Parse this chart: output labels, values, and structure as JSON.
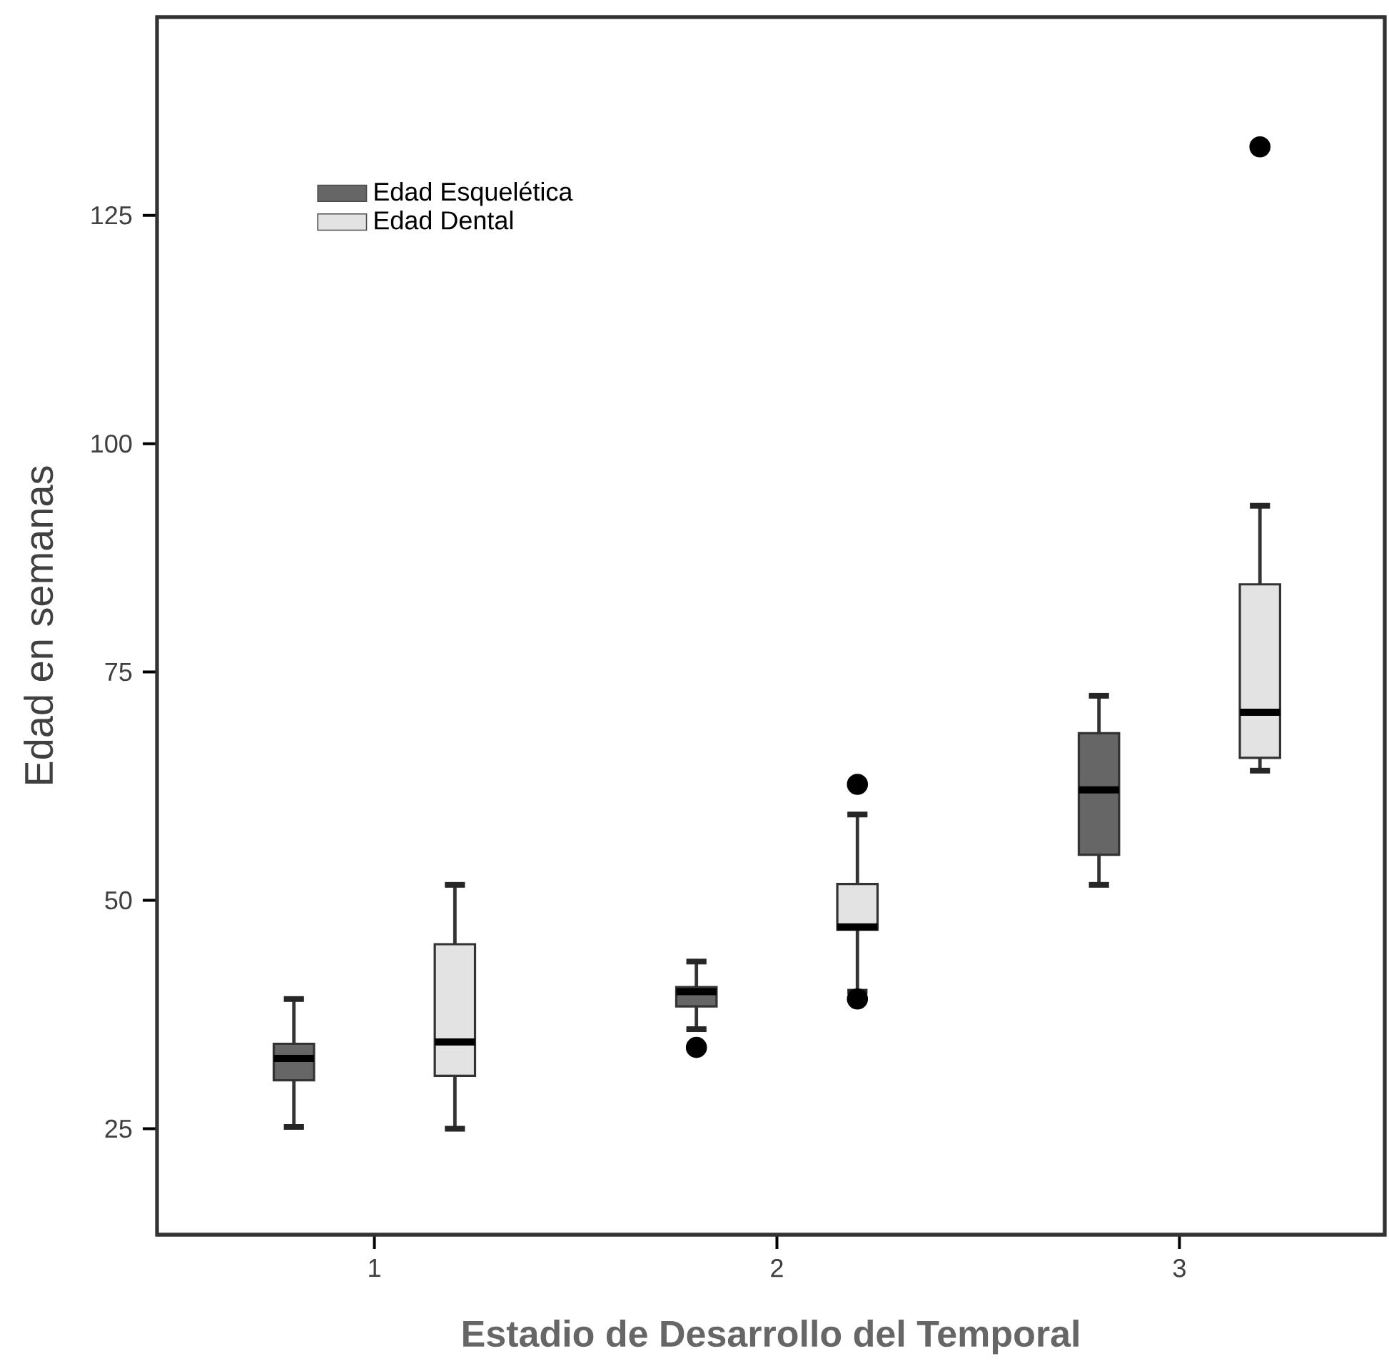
{
  "chart_data": {
    "type": "box",
    "xlabel": "Estadio de Desarrollo del Temporal",
    "ylabel": "Edad en semanas",
    "categories": [
      "1",
      "2",
      "3"
    ],
    "ylim": [
      13.4,
      146.7
    ],
    "yticks": [
      25,
      50,
      75,
      100,
      125
    ],
    "legend": "top left",
    "grid": false,
    "series": [
      {
        "name": "Edad Esquelética",
        "color": "#666666",
        "boxes": [
          {
            "low": 25.2,
            "q1": 30.3,
            "median": 32.7,
            "q3": 34.3,
            "high": 39.2
          },
          {
            "low": 35.9,
            "q1": 38.4,
            "median": 40.0,
            "q3": 40.5,
            "high": 43.3,
            "outliers": [
              33.9
            ]
          },
          {
            "low": 51.7,
            "q1": 55.0,
            "median": 62.1,
            "q3": 68.3,
            "high": 72.4
          }
        ]
      },
      {
        "name": "Edad Dental",
        "color": "#e3e3e3",
        "boxes": [
          {
            "low": 25.0,
            "q1": 30.8,
            "median": 34.5,
            "q3": 45.2,
            "high": 51.7
          },
          {
            "low": 40.0,
            "q1": 46.8,
            "median": 47.1,
            "q3": 51.8,
            "high": 59.4,
            "outliers": [
              62.7,
              39.2
            ]
          },
          {
            "low": 64.2,
            "q1": 65.6,
            "median": 70.6,
            "q3": 84.6,
            "high": 93.2,
            "outliers": [
              132.5
            ]
          }
        ]
      }
    ]
  }
}
